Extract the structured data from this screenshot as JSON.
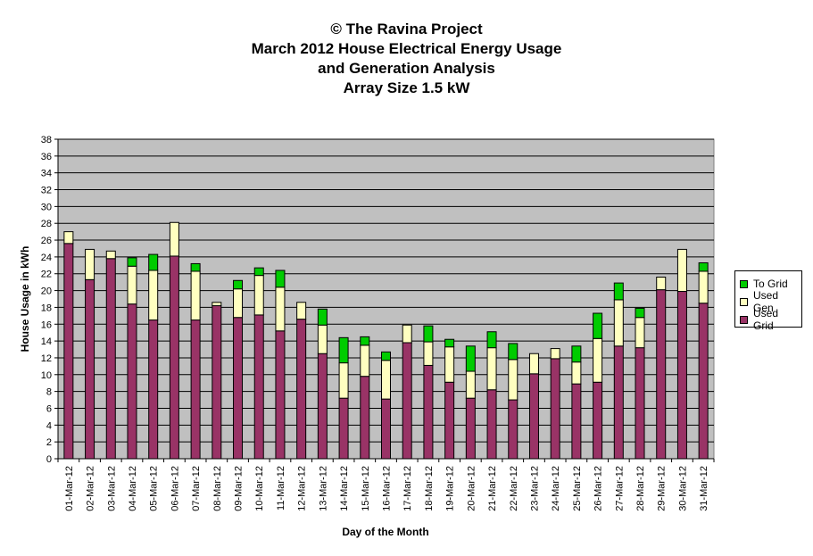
{
  "title": {
    "line1": "© The Ravina Project",
    "line2": "March 2012 House Electrical Energy Usage",
    "line3": "and Generation Analysis",
    "line4": "Array Size 1.5 kW"
  },
  "chart_data": {
    "type": "bar",
    "stacked": true,
    "xlabel": "Day of the Month",
    "ylabel": "House Usage in kWh",
    "ylim": [
      0,
      38
    ],
    "ytick_step": 2,
    "grid": true,
    "legend_position": "right",
    "categories": [
      "01-Mar-12",
      "02-Mar-12",
      "03-Mar-12",
      "04-Mar-12",
      "05-Mar-12",
      "06-Mar-12",
      "07-Mar-12",
      "08-Mar-12",
      "09-Mar-12",
      "10-Mar-12",
      "11-Mar-12",
      "12-Mar-12",
      "13-Mar-12",
      "14-Mar-12",
      "15-Mar-12",
      "16-Mar-12",
      "17-Mar-12",
      "18-Mar-12",
      "19-Mar-12",
      "20-Mar-12",
      "21-Mar-12",
      "22-Mar-12",
      "23-Mar-12",
      "24-Mar-12",
      "25-Mar-12",
      "26-Mar-12",
      "27-Mar-12",
      "28-Mar-12",
      "29-Mar-12",
      "30-Mar-12",
      "31-Mar-12"
    ],
    "series": [
      {
        "name": "Used Grid",
        "color": "#993366",
        "values": [
          25.6,
          21.3,
          23.8,
          18.4,
          16.5,
          24.1,
          16.5,
          18.2,
          16.8,
          17.1,
          15.2,
          16.6,
          12.5,
          7.2,
          9.8,
          7.1,
          13.8,
          11.1,
          9.1,
          7.2,
          8.2,
          7.0,
          10.1,
          11.9,
          8.9,
          9.1,
          13.4,
          13.2,
          20.1,
          19.9,
          18.5
        ]
      },
      {
        "name": "Used Gen",
        "color": "#ffffc0",
        "values": [
          1.4,
          3.6,
          0.9,
          4.5,
          5.9,
          4.0,
          5.8,
          0.4,
          3.4,
          4.7,
          5.2,
          2.0,
          3.4,
          4.2,
          3.7,
          4.6,
          2.1,
          2.8,
          4.2,
          3.2,
          5.0,
          4.8,
          2.4,
          1.2,
          2.6,
          5.2,
          5.5,
          3.6,
          1.5,
          5.0,
          3.8
        ]
      },
      {
        "name": "To Grid",
        "color": "#00cc00",
        "values": [
          0,
          0,
          0,
          1.0,
          1.9,
          0,
          0.9,
          0,
          1.0,
          0.9,
          2.0,
          0,
          1.9,
          3.0,
          1.0,
          1.0,
          0,
          1.9,
          0.9,
          3.0,
          1.9,
          1.9,
          0,
          0,
          1.9,
          3.0,
          2.0,
          1.1,
          0,
          0,
          1.0
        ]
      }
    ],
    "legend_order": [
      "To Grid",
      "Used Gen",
      "Used Grid"
    ]
  }
}
